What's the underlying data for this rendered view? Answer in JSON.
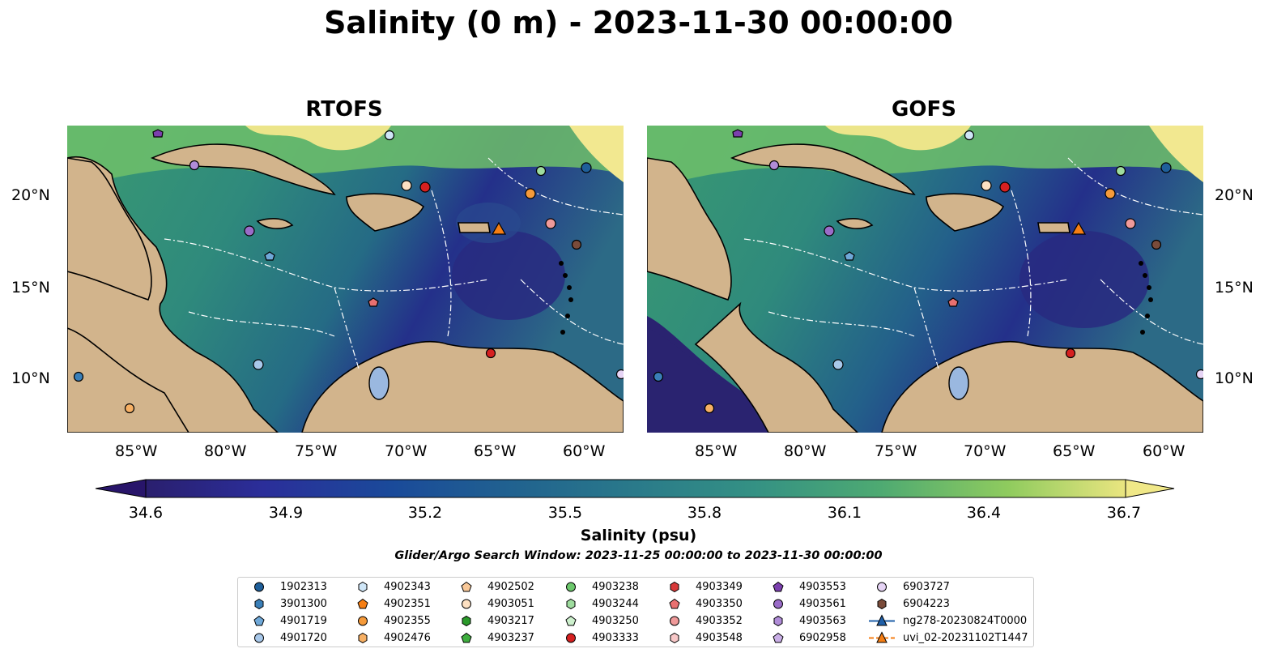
{
  "title": "Salinity (0 m) - 2023-11-30 00:00:00",
  "panels": [
    {
      "title": "RTOFS"
    },
    {
      "title": "GOFS"
    }
  ],
  "lon_labels": [
    "85°W",
    "80°W",
    "75°W",
    "70°W",
    "65°W",
    "60°W"
  ],
  "lat_labels": [
    "20°N",
    "15°N",
    "10°N"
  ],
  "colorbar": {
    "label": "Salinity (psu)",
    "ticks": [
      "34.6",
      "34.9",
      "35.2",
      "35.5",
      "35.8",
      "36.1",
      "36.4",
      "36.7"
    ],
    "vmin": 34.6,
    "vmax": 36.7,
    "colormap": "haline",
    "extend": "both"
  },
  "search_window": "Glider/Argo Search Window: 2023-11-25 00:00:00 to 2023-11-30 00:00:00",
  "legend": [
    {
      "label": "1902313",
      "marker": "circle",
      "color": "#1f5f9a"
    },
    {
      "label": "3901300",
      "marker": "hexagon",
      "color": "#3a7fb8"
    },
    {
      "label": "4901719",
      "marker": "pentagon",
      "color": "#6fa8d8"
    },
    {
      "label": "4901720",
      "marker": "circle",
      "color": "#a8c8ea"
    },
    {
      "label": "4902343",
      "marker": "hexagon",
      "color": "#cfe6f7"
    },
    {
      "label": "4902351",
      "marker": "pentagon",
      "color": "#f57e14"
    },
    {
      "label": "4902355",
      "marker": "circle",
      "color": "#f59a3a"
    },
    {
      "label": "4902476",
      "marker": "hexagon",
      "color": "#f7b064"
    },
    {
      "label": "4902502",
      "marker": "pentagon",
      "color": "#f8c898"
    },
    {
      "label": "4903051",
      "marker": "circle",
      "color": "#fde0c2"
    },
    {
      "label": "4903217",
      "marker": "hexagon",
      "color": "#2b9a2b"
    },
    {
      "label": "4903237",
      "marker": "pentagon",
      "color": "#3fae3f"
    },
    {
      "label": "4903238",
      "marker": "circle",
      "color": "#6cc86c"
    },
    {
      "label": "4903244",
      "marker": "hexagon",
      "color": "#9edc9e"
    },
    {
      "label": "4903250",
      "marker": "pentagon",
      "color": "#cdf0cd"
    },
    {
      "label": "4903333",
      "marker": "circle",
      "color": "#d62020"
    },
    {
      "label": "4903349",
      "marker": "hexagon",
      "color": "#d83a3a"
    },
    {
      "label": "4903350",
      "marker": "pentagon",
      "color": "#e97070"
    },
    {
      "label": "4903352",
      "marker": "circle",
      "color": "#f09a9a"
    },
    {
      "label": "4903548",
      "marker": "hexagon",
      "color": "#f8c8c8"
    },
    {
      "label": "4903553",
      "marker": "pentagon",
      "color": "#7b3fae"
    },
    {
      "label": "4903561",
      "marker": "circle",
      "color": "#9a6cc8"
    },
    {
      "label": "4903563",
      "marker": "hexagon",
      "color": "#b08cd8"
    },
    {
      "label": "6902958",
      "marker": "pentagon",
      "color": "#c9aee6"
    },
    {
      "label": "6903727",
      "marker": "circle",
      "color": "#e6d4f5"
    },
    {
      "label": "6904223",
      "marker": "hexagon",
      "color": "#7a4b3a"
    },
    {
      "label": "ng278-20230824T0000",
      "marker": "triangle-line",
      "color": "#1f5fa8"
    },
    {
      "label": "uvi_02-20231102T1447",
      "marker": "triangle-line",
      "color": "#f57e14"
    }
  ],
  "map_colors": {
    "land": "#d2b48c",
    "lake": "#9ab8e0",
    "river": "#a0b8d8",
    "contour": "#000000",
    "eez_lines": "#ffffff"
  }
}
